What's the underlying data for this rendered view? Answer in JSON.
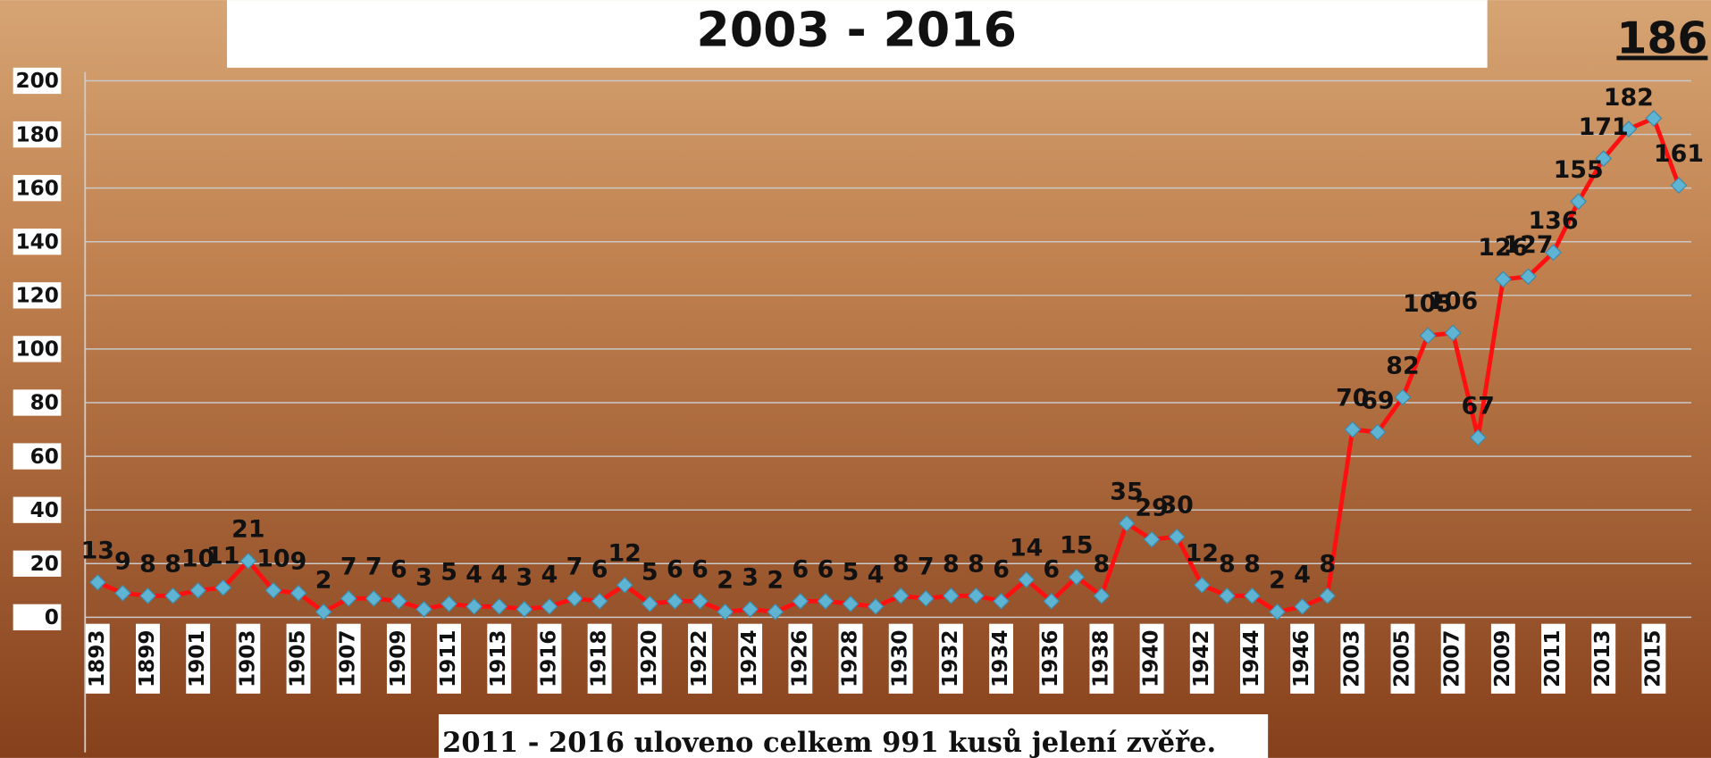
{
  "chart_data": {
    "type": "line",
    "title": "2003 - 2016",
    "annotation": "2011 - 2016 uloveno celkem 991 kusů jelení zvěře.",
    "categories": [
      "1893",
      null,
      "1899",
      null,
      "1901",
      null,
      "1903",
      null,
      "1905",
      null,
      "1907",
      null,
      "1909",
      null,
      "1911",
      null,
      "1913",
      null,
      "1916",
      null,
      "1918",
      null,
      "1920",
      null,
      "1922",
      null,
      "1924",
      null,
      "1926",
      null,
      "1928",
      null,
      "1930",
      null,
      "1932",
      null,
      "1934",
      null,
      "1936",
      null,
      "1938",
      null,
      "1940",
      null,
      "1942",
      null,
      "1944",
      null,
      "1946",
      null,
      "2003",
      null,
      "2005",
      null,
      "2007",
      null,
      "2009",
      null,
      "2011",
      null,
      "2013",
      null,
      "2015",
      null
    ],
    "values": [
      13,
      9,
      8,
      8,
      10,
      11,
      21,
      10,
      9,
      2,
      7,
      7,
      6,
      3,
      5,
      4,
      4,
      3,
      4,
      7,
      6,
      12,
      5,
      6,
      6,
      2,
      3,
      2,
      6,
      6,
      5,
      4,
      8,
      7,
      8,
      8,
      6,
      14,
      6,
      15,
      8,
      35,
      29,
      30,
      12,
      8,
      8,
      2,
      4,
      8,
      70,
      69,
      82,
      105,
      106,
      67,
      126,
      127,
      136,
      155,
      171,
      182,
      186,
      161
    ],
    "color": "#ff1010",
    "marker_color": "#5fb3d3",
    "ylim": [
      0,
      200
    ],
    "yticks": [
      0,
      20,
      40,
      60,
      80,
      100,
      120,
      140,
      160,
      180,
      200
    ],
    "grid": true
  }
}
